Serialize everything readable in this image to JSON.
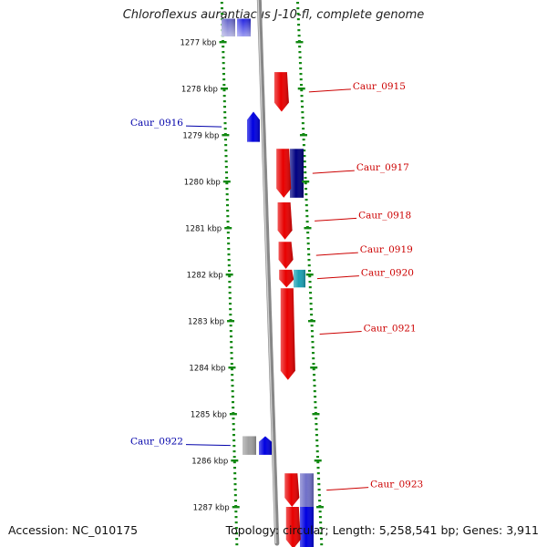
{
  "title": "Chloroflexus aurantiacus J-10-fl, complete genome",
  "footer": {
    "accession": "Accession: NC_010175",
    "topology": "Topology: circular; Length: 5,258,541 bp; Genes: 3,911"
  },
  "axis": {
    "ticks": [
      {
        "label": "1277 kbp",
        "kbp": 1277
      },
      {
        "label": "1278 kbp",
        "kbp": 1278
      },
      {
        "label": "1279 kbp",
        "kbp": 1279
      },
      {
        "label": "1280 kbp",
        "kbp": 1280
      },
      {
        "label": "1281 kbp",
        "kbp": 1281
      },
      {
        "label": "1282 kbp",
        "kbp": 1282
      },
      {
        "label": "1283 kbp",
        "kbp": 1283
      },
      {
        "label": "1284 kbp",
        "kbp": 1284
      },
      {
        "label": "1285 kbp",
        "kbp": 1285
      },
      {
        "label": "1286 kbp",
        "kbp": 1286
      },
      {
        "label": "1287 kbp",
        "kbp": 1287
      }
    ]
  },
  "genes": [
    {
      "name": "Caur_0915",
      "strand": "+",
      "start_kbp": 1277.65,
      "end_kbp": 1278.5,
      "color": "#e80000",
      "label_side": "right"
    },
    {
      "name": "Caur_0916",
      "strand": "-",
      "start_kbp": 1278.5,
      "end_kbp": 1279.15,
      "color": "#0000e0",
      "label_side": "left"
    },
    {
      "name": "Caur_0917",
      "strand": "+",
      "start_kbp": 1279.3,
      "end_kbp": 1280.35,
      "color": "#e80000",
      "label_side": "right"
    },
    {
      "name": "Caur_0918",
      "strand": "+",
      "start_kbp": 1280.45,
      "end_kbp": 1281.25,
      "color": "#e80000",
      "label_side": "right"
    },
    {
      "name": "Caur_0919",
      "strand": "+",
      "start_kbp": 1281.3,
      "end_kbp": 1281.88,
      "color": "#e80000",
      "label_side": "right"
    },
    {
      "name": "Caur_0920",
      "strand": "+",
      "start_kbp": 1281.9,
      "end_kbp": 1282.28,
      "color": "#e80000",
      "label_side": "right"
    },
    {
      "name": "Caur_0921",
      "strand": "+",
      "start_kbp": 1282.3,
      "end_kbp": 1284.27,
      "color": "#e80000",
      "label_side": "right"
    },
    {
      "name": "Caur_0922",
      "strand": "-",
      "start_kbp": 1285.48,
      "end_kbp": 1285.88,
      "color": "#0000e0",
      "label_side": "left"
    },
    {
      "name": "Caur_0923",
      "strand": "+",
      "start_kbp": 1286.28,
      "end_kbp": 1287.0,
      "color": "#e80000",
      "label_side": "right"
    }
  ],
  "features": [
    {
      "kind": "bar",
      "start_kbp": 1279.3,
      "end_kbp": 1280.35,
      "color": "#000080"
    },
    {
      "kind": "bar",
      "start_kbp": 1281.9,
      "end_kbp": 1282.28,
      "color": "#1aa0b4"
    },
    {
      "kind": "bar",
      "start_kbp": 1285.48,
      "end_kbp": 1285.88,
      "color": "#a0a0a0"
    },
    {
      "kind": "bar",
      "start_kbp": 1286.28,
      "end_kbp": 1287.0,
      "color": "#7070c8"
    },
    {
      "kind": "bar",
      "start_kbp": 1287.0,
      "end_kbp": 1287.9,
      "color": "#0000e0"
    },
    {
      "kind": "gene",
      "strand": "+",
      "start_kbp": 1287.0,
      "end_kbp": 1287.9,
      "color": "#e80000"
    },
    {
      "kind": "bar",
      "start_kbp": 1276.5,
      "end_kbp": 1276.88,
      "color": "#6060c8"
    },
    {
      "kind": "bar",
      "start_kbp": 1276.5,
      "end_kbp": 1276.88,
      "color": "#2020e0"
    }
  ],
  "colors": {
    "forward_gene": "#e80000",
    "reverse_gene": "#0000e0",
    "forward_label": "#cc0000",
    "reverse_label": "#0000aa",
    "dotted_track": "#118811",
    "backbone": "#888888"
  }
}
